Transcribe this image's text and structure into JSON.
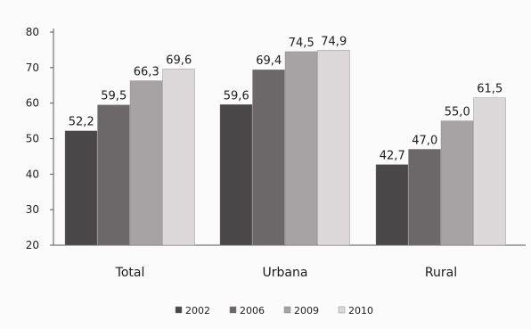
{
  "chart_data": {
    "type": "bar",
    "title": "",
    "xlabel": "",
    "ylabel": "",
    "categories": [
      "Total",
      "Urbana",
      "Rural"
    ],
    "series": [
      {
        "name": "2002",
        "values": [
          52.2,
          59.6,
          42.7
        ],
        "labels": [
          "52,2",
          "59,6",
          "42,7"
        ],
        "color": "#4a4748"
      },
      {
        "name": "2006",
        "values": [
          59.5,
          69.4,
          47.0
        ],
        "labels": [
          "59,5",
          "69,4",
          "47,0"
        ],
        "color": "#6c6869"
      },
      {
        "name": "2009",
        "values": [
          66.3,
          74.5,
          55.0
        ],
        "labels": [
          "66,3",
          "74,5",
          "55,0"
        ],
        "color": "#a7a3a4"
      },
      {
        "name": "2010",
        "values": [
          69.6,
          74.9,
          61.5
        ],
        "labels": [
          "69,6",
          "74,9",
          "61,5"
        ],
        "color": "#dcd8da"
      }
    ],
    "ylim": [
      20,
      80
    ],
    "yticks": [
      20,
      30,
      40,
      50,
      60,
      70,
      80
    ],
    "grid": false,
    "legend_position": "bottom"
  }
}
